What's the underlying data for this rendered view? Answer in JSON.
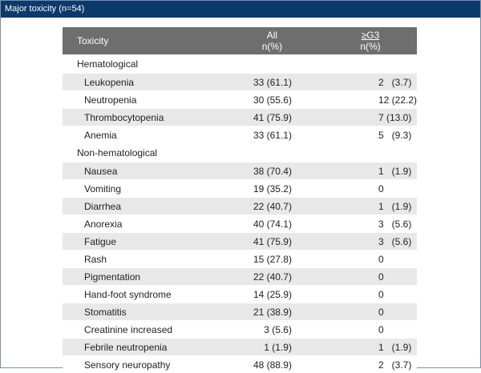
{
  "title": "Major toxicity (n=54)",
  "header": {
    "toxicity": "Toxicity",
    "all_line1": "All",
    "all_line2": "n(%)",
    "g3_line1": "≥G3",
    "g3_line2": "n(%)"
  },
  "groups": [
    {
      "label": "Hematological",
      "rows": [
        {
          "name": "Leukopenia",
          "all": "33 (61.1)",
          "g3": "2   (3.7)"
        },
        {
          "name": "Neutropenia",
          "all": "30 (55.6)",
          "g3": "12 (22.2)"
        },
        {
          "name": "Thrombocytopenia",
          "all": "41 (75.9)",
          "g3": "7 (13.0)"
        },
        {
          "name": "Anemia",
          "all": "33 (61.1)",
          "g3": "5   (9.3)"
        }
      ]
    },
    {
      "label": "Non-hematological",
      "rows": [
        {
          "name": "Nausea",
          "all": "38 (70.4)",
          "g3": "1   (1.9)"
        },
        {
          "name": "Vomiting",
          "all": "19 (35.2)",
          "g3": "0"
        },
        {
          "name": "Diarrhea",
          "all": "22 (40.7)",
          "g3": "1   (1.9)"
        },
        {
          "name": "Anorexia",
          "all": "40 (74.1)",
          "g3": "3   (5.6)"
        },
        {
          "name": "Fatigue",
          "all": "41 (75.9)",
          "g3": "3   (5.6)"
        },
        {
          "name": "Rash",
          "all": "15 (27.8)",
          "g3": "0"
        },
        {
          "name": "Pigmentation",
          "all": "22 (40.7)",
          "g3": "0"
        },
        {
          "name": "Hand-foot syndrome",
          "all": "14 (25.9)",
          "g3": "0"
        },
        {
          "name": "Stomatitis",
          "all": "21 (38.9)",
          "g3": "0"
        },
        {
          "name": "Creatinine increased",
          "all": "3   (5.6)",
          "g3": "0"
        },
        {
          "name": "Febrile neutropenia",
          "all": "1   (1.9)",
          "g3": "1   (1.9)"
        },
        {
          "name": "Sensory neuropathy",
          "all": "48 (88.9)",
          "g3": "2   (3.7)"
        }
      ]
    }
  ]
}
